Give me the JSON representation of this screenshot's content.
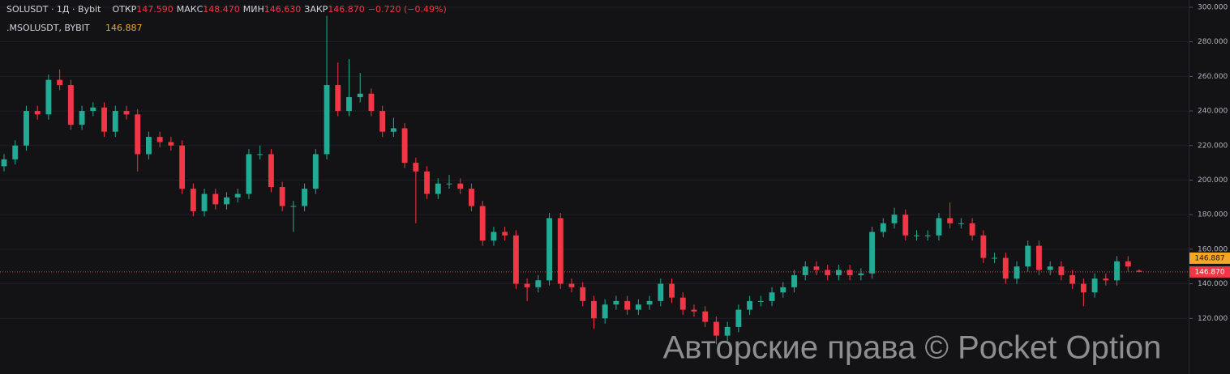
{
  "chart_data": {
    "type": "candlestick",
    "symbol": "SOLUSDT · 1Д · Bybit",
    "header": [
      {
        "label": "ОТКР",
        "value": "147.590"
      },
      {
        "label": "МАКС",
        "value": "148.470"
      },
      {
        "label": "МИН",
        "value": "146.630"
      },
      {
        "label": "ЗАКР",
        "value": "146.870"
      }
    ],
    "change": "−0.720 (−0.49%)",
    "indicator": {
      "name": ".MSOLUSDT, BYBIT",
      "value": {
        "value": 146.887,
        "label": "146.887"
      },
      "color": "#f5a623"
    },
    "last_price": {
      "value": 146.87,
      "label": "146.870"
    },
    "watermark": "Авторские права © Pocket Option",
    "up_color": "#22ab94",
    "down_color": "#f23645",
    "grid": true,
    "ylim": [
      87.8,
      304.2
    ],
    "yticks": [
      {
        "value": 120,
        "label": "120.000"
      },
      {
        "value": 140,
        "label": "140.000"
      },
      {
        "value": 160,
        "label": "160.000"
      },
      {
        "value": 180,
        "label": "180.000"
      },
      {
        "value": 200,
        "label": "200.000"
      },
      {
        "value": 220,
        "label": "220.000"
      },
      {
        "value": 240,
        "label": "240.000"
      },
      {
        "value": 260,
        "label": "260.000"
      },
      {
        "value": 280,
        "label": "280.000"
      },
      {
        "value": 300,
        "label": "300.000"
      }
    ],
    "open": [
      208,
      212,
      220,
      240,
      238,
      258,
      255,
      232,
      240,
      242,
      228,
      240,
      238,
      215,
      225,
      222,
      220,
      195,
      182,
      192,
      186,
      190,
      192,
      215,
      215,
      196,
      185,
      185,
      195,
      215,
      255,
      240,
      248,
      250,
      240,
      228,
      230,
      210,
      205,
      192,
      198,
      198,
      195,
      185,
      165,
      170,
      168,
      140,
      138,
      142,
      178,
      140,
      138,
      130,
      120,
      128,
      130,
      125,
      128,
      130,
      140,
      132,
      125,
      124,
      118,
      110,
      115,
      125,
      130,
      130,
      135,
      138,
      145,
      150,
      148,
      145,
      148,
      145,
      146,
      170,
      175,
      180,
      168,
      168,
      168,
      178,
      175,
      175,
      168,
      155,
      155,
      143,
      150,
      162,
      148,
      150,
      145,
      140,
      135,
      143,
      142,
      153,
      147.59
    ],
    "high": [
      215,
      223,
      243,
      243,
      261,
      264,
      258,
      243,
      245,
      245,
      243,
      243,
      241,
      228,
      228,
      225,
      223,
      198,
      195,
      195,
      193,
      195,
      218,
      220,
      218,
      199,
      188,
      198,
      218,
      295,
      268,
      270,
      262,
      253,
      243,
      236,
      233,
      213,
      208,
      201,
      203,
      201,
      198,
      188,
      173,
      173,
      171,
      143,
      145,
      181,
      181,
      143,
      141,
      133,
      131,
      133,
      133,
      131,
      133,
      143,
      143,
      135,
      128,
      127,
      121,
      118,
      128,
      133,
      133,
      138,
      141,
      148,
      153,
      153,
      151,
      151,
      151,
      149,
      173,
      178,
      184,
      183,
      171,
      171,
      181,
      187,
      178,
      178,
      171,
      158,
      158,
      153,
      165,
      165,
      153,
      153,
      148,
      143,
      146,
      146,
      156,
      156,
      148.47
    ],
    "low": [
      205,
      209,
      217,
      235,
      235,
      252,
      229,
      229,
      237,
      225,
      225,
      235,
      205,
      212,
      219,
      217,
      192,
      179,
      179,
      183,
      183,
      187,
      189,
      212,
      193,
      182,
      170,
      182,
      192,
      212,
      237,
      237,
      245,
      237,
      225,
      225,
      207,
      175,
      189,
      189,
      195,
      192,
      182,
      162,
      162,
      165,
      137,
      130,
      135,
      139,
      137,
      135,
      127,
      114,
      117,
      125,
      122,
      122,
      125,
      127,
      129,
      122,
      121,
      115,
      105,
      107,
      112,
      122,
      127,
      127,
      132,
      135,
      142,
      145,
      142,
      142,
      142,
      142,
      143,
      167,
      172,
      165,
      165,
      165,
      165,
      172,
      172,
      165,
      152,
      152,
      140,
      140,
      147,
      145,
      145,
      142,
      137,
      127,
      132,
      139,
      139,
      147,
      146.63
    ],
    "close": [
      212,
      220,
      240,
      238,
      258,
      255,
      232,
      240,
      242,
      228,
      240,
      238,
      215,
      225,
      222,
      220,
      195,
      182,
      192,
      186,
      190,
      192,
      215,
      215,
      196,
      185,
      185,
      195,
      215,
      255,
      240,
      248,
      250,
      240,
      228,
      230,
      210,
      205,
      192,
      198,
      198,
      195,
      185,
      165,
      170,
      168,
      140,
      138,
      142,
      178,
      140,
      138,
      130,
      120,
      128,
      130,
      125,
      128,
      130,
      140,
      132,
      125,
      124,
      118,
      110,
      115,
      125,
      130,
      130,
      135,
      138,
      145,
      150,
      148,
      145,
      148,
      145,
      146,
      170,
      175,
      180,
      168,
      168,
      168,
      178,
      175,
      175,
      168,
      155,
      155,
      143,
      150,
      162,
      148,
      150,
      145,
      140,
      135,
      143,
      142,
      153,
      150,
      146.87
    ]
  }
}
